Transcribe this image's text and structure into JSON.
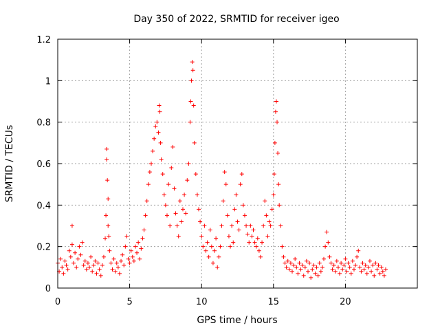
{
  "chart_data": {
    "type": "scatter",
    "title": "Day 350 of 2022, SRMTID for receiver igeo",
    "xlabel": "GPS time / hours",
    "ylabel": "SRMTID / TECUs",
    "xlim": [
      0,
      25
    ],
    "ylim": [
      0,
      1.2
    ],
    "x_ticks": [
      0,
      5,
      10,
      15,
      20
    ],
    "x_tick_labels": [
      "0",
      "5",
      "10",
      "15",
      "20"
    ],
    "y_ticks": [
      0,
      0.2,
      0.4,
      0.6,
      0.8,
      1,
      1.2
    ],
    "y_tick_labels": [
      "0",
      "0.2",
      "0.4",
      "0.6",
      "0.8",
      "1",
      "1.2"
    ],
    "grid": true,
    "marker": "+",
    "color": "#ff0000",
    "series": [
      {
        "name": "SRMTID",
        "points": [
          [
            0.0,
            0.12
          ],
          [
            0.1,
            0.08
          ],
          [
            0.2,
            0.14
          ],
          [
            0.3,
            0.1
          ],
          [
            0.4,
            0.07
          ],
          [
            0.5,
            0.13
          ],
          [
            0.6,
            0.11
          ],
          [
            0.7,
            0.09
          ],
          [
            0.8,
            0.18
          ],
          [
            0.9,
            0.15
          ],
          [
            1.0,
            0.3
          ],
          [
            1.0,
            0.21
          ],
          [
            1.1,
            0.12
          ],
          [
            1.2,
            0.17
          ],
          [
            1.3,
            0.1
          ],
          [
            1.4,
            0.14
          ],
          [
            1.5,
            0.2
          ],
          [
            1.6,
            0.16
          ],
          [
            1.7,
            0.22
          ],
          [
            1.8,
            0.11
          ],
          [
            1.9,
            0.13
          ],
          [
            2.0,
            0.09
          ],
          [
            2.1,
            0.12
          ],
          [
            2.2,
            0.1
          ],
          [
            2.3,
            0.15
          ],
          [
            2.4,
            0.08
          ],
          [
            2.5,
            0.11
          ],
          [
            2.6,
            0.13
          ],
          [
            2.7,
            0.07
          ],
          [
            2.8,
            0.12
          ],
          [
            2.9,
            0.09
          ],
          [
            3.0,
            0.06
          ],
          [
            3.1,
            0.11
          ],
          [
            3.2,
            0.15
          ],
          [
            3.3,
            0.24
          ],
          [
            3.35,
            0.35
          ],
          [
            3.4,
            0.67
          ],
          [
            3.4,
            0.62
          ],
          [
            3.45,
            0.52
          ],
          [
            3.5,
            0.43
          ],
          [
            3.5,
            0.3
          ],
          [
            3.55,
            0.25
          ],
          [
            3.6,
            0.18
          ],
          [
            3.7,
            0.12
          ],
          [
            3.8,
            0.09
          ],
          [
            3.9,
            0.14
          ],
          [
            4.0,
            0.08
          ],
          [
            4.1,
            0.12
          ],
          [
            4.2,
            0.1
          ],
          [
            4.3,
            0.07
          ],
          [
            4.4,
            0.13
          ],
          [
            4.5,
            0.16
          ],
          [
            4.6,
            0.11
          ],
          [
            4.7,
            0.2
          ],
          [
            4.8,
            0.25
          ],
          [
            4.9,
            0.14
          ],
          [
            5.0,
            0.12
          ],
          [
            5.1,
            0.18
          ],
          [
            5.2,
            0.15
          ],
          [
            5.3,
            0.13
          ],
          [
            5.4,
            0.2
          ],
          [
            5.5,
            0.17
          ],
          [
            5.6,
            0.22
          ],
          [
            5.7,
            0.14
          ],
          [
            5.8,
            0.19
          ],
          [
            5.9,
            0.24
          ],
          [
            6.0,
            0.28
          ],
          [
            6.1,
            0.35
          ],
          [
            6.2,
            0.42
          ],
          [
            6.3,
            0.5
          ],
          [
            6.4,
            0.56
          ],
          [
            6.5,
            0.6
          ],
          [
            6.6,
            0.66
          ],
          [
            6.7,
            0.72
          ],
          [
            6.8,
            0.78
          ],
          [
            6.9,
            0.8
          ],
          [
            7.0,
            0.75
          ],
          [
            7.05,
            0.88
          ],
          [
            7.1,
            0.85
          ],
          [
            7.15,
            0.7
          ],
          [
            7.2,
            0.62
          ],
          [
            7.3,
            0.55
          ],
          [
            7.4,
            0.45
          ],
          [
            7.5,
            0.4
          ],
          [
            7.6,
            0.35
          ],
          [
            7.7,
            0.5
          ],
          [
            7.8,
            0.3
          ],
          [
            7.9,
            0.58
          ],
          [
            8.0,
            0.68
          ],
          [
            8.1,
            0.48
          ],
          [
            8.2,
            0.36
          ],
          [
            8.3,
            0.3
          ],
          [
            8.4,
            0.25
          ],
          [
            8.5,
            0.42
          ],
          [
            8.6,
            0.32
          ],
          [
            8.7,
            0.38
          ],
          [
            8.8,
            0.45
          ],
          [
            8.9,
            0.36
          ],
          [
            9.0,
            0.52
          ],
          [
            9.1,
            0.6
          ],
          [
            9.2,
            0.8
          ],
          [
            9.25,
            0.9
          ],
          [
            9.3,
            1.0
          ],
          [
            9.35,
            1.09
          ],
          [
            9.4,
            1.05
          ],
          [
            9.45,
            0.88
          ],
          [
            9.5,
            0.7
          ],
          [
            9.6,
            0.55
          ],
          [
            9.7,
            0.45
          ],
          [
            9.8,
            0.38
          ],
          [
            9.9,
            0.32
          ],
          [
            10.0,
            0.25
          ],
          [
            10.1,
            0.2
          ],
          [
            10.2,
            0.3
          ],
          [
            10.3,
            0.18
          ],
          [
            10.4,
            0.22
          ],
          [
            10.5,
            0.15
          ],
          [
            10.6,
            0.28
          ],
          [
            10.7,
            0.2
          ],
          [
            10.8,
            0.12
          ],
          [
            10.9,
            0.18
          ],
          [
            11.0,
            0.24
          ],
          [
            11.1,
            0.1
          ],
          [
            11.2,
            0.15
          ],
          [
            11.3,
            0.2
          ],
          [
            11.4,
            0.3
          ],
          [
            11.5,
            0.42
          ],
          [
            11.6,
            0.56
          ],
          [
            11.7,
            0.5
          ],
          [
            11.8,
            0.35
          ],
          [
            11.9,
            0.25
          ],
          [
            12.0,
            0.2
          ],
          [
            12.1,
            0.3
          ],
          [
            12.2,
            0.22
          ],
          [
            12.3,
            0.38
          ],
          [
            12.4,
            0.45
          ],
          [
            12.5,
            0.32
          ],
          [
            12.6,
            0.28
          ],
          [
            12.7,
            0.5
          ],
          [
            12.8,
            0.55
          ],
          [
            12.9,
            0.4
          ],
          [
            13.0,
            0.35
          ],
          [
            13.1,
            0.3
          ],
          [
            13.2,
            0.26
          ],
          [
            13.3,
            0.22
          ],
          [
            13.4,
            0.3
          ],
          [
            13.5,
            0.25
          ],
          [
            13.6,
            0.28
          ],
          [
            13.7,
            0.22
          ],
          [
            13.8,
            0.2
          ],
          [
            13.9,
            0.24
          ],
          [
            14.0,
            0.18
          ],
          [
            14.1,
            0.15
          ],
          [
            14.2,
            0.22
          ],
          [
            14.3,
            0.3
          ],
          [
            14.4,
            0.42
          ],
          [
            14.5,
            0.35
          ],
          [
            14.6,
            0.25
          ],
          [
            14.7,
            0.32
          ],
          [
            14.8,
            0.3
          ],
          [
            14.9,
            0.38
          ],
          [
            15.0,
            0.45
          ],
          [
            15.05,
            0.55
          ],
          [
            15.1,
            0.7
          ],
          [
            15.15,
            0.85
          ],
          [
            15.2,
            0.9
          ],
          [
            15.25,
            0.8
          ],
          [
            15.3,
            0.65
          ],
          [
            15.35,
            0.5
          ],
          [
            15.4,
            0.4
          ],
          [
            15.5,
            0.3
          ],
          [
            15.6,
            0.2
          ],
          [
            15.7,
            0.15
          ],
          [
            15.8,
            0.12
          ],
          [
            15.9,
            0.1
          ],
          [
            16.0,
            0.13
          ],
          [
            16.1,
            0.09
          ],
          [
            16.2,
            0.12
          ],
          [
            16.3,
            0.08
          ],
          [
            16.4,
            0.11
          ],
          [
            16.5,
            0.14
          ],
          [
            16.6,
            0.1
          ],
          [
            16.7,
            0.07
          ],
          [
            16.8,
            0.12
          ],
          [
            16.9,
            0.09
          ],
          [
            17.0,
            0.11
          ],
          [
            17.1,
            0.06
          ],
          [
            17.2,
            0.1
          ],
          [
            17.3,
            0.13
          ],
          [
            17.4,
            0.08
          ],
          [
            17.5,
            0.12
          ],
          [
            17.6,
            0.05
          ],
          [
            17.7,
            0.09
          ],
          [
            17.8,
            0.11
          ],
          [
            17.9,
            0.07
          ],
          [
            18.0,
            0.1
          ],
          [
            18.1,
            0.06
          ],
          [
            18.2,
            0.12
          ],
          [
            18.3,
            0.08
          ],
          [
            18.4,
            0.1
          ],
          [
            18.5,
            0.14
          ],
          [
            18.6,
            0.2
          ],
          [
            18.7,
            0.27
          ],
          [
            18.8,
            0.22
          ],
          [
            18.9,
            0.15
          ],
          [
            19.0,
            0.12
          ],
          [
            19.1,
            0.09
          ],
          [
            19.2,
            0.11
          ],
          [
            19.3,
            0.08
          ],
          [
            19.4,
            0.13
          ],
          [
            19.5,
            0.1
          ],
          [
            19.6,
            0.07
          ],
          [
            19.7,
            0.12
          ],
          [
            19.8,
            0.09
          ],
          [
            19.9,
            0.11
          ],
          [
            20.0,
            0.14
          ],
          [
            20.1,
            0.08
          ],
          [
            20.2,
            0.12
          ],
          [
            20.3,
            0.1
          ],
          [
            20.4,
            0.07
          ],
          [
            20.5,
            0.13
          ],
          [
            20.6,
            0.09
          ],
          [
            20.7,
            0.11
          ],
          [
            20.8,
            0.15
          ],
          [
            20.9,
            0.18
          ],
          [
            21.0,
            0.1
          ],
          [
            21.1,
            0.08
          ],
          [
            21.2,
            0.12
          ],
          [
            21.3,
            0.09
          ],
          [
            21.4,
            0.11
          ],
          [
            21.5,
            0.07
          ],
          [
            21.6,
            0.1
          ],
          [
            21.7,
            0.13
          ],
          [
            21.8,
            0.08
          ],
          [
            21.9,
            0.11
          ],
          [
            22.0,
            0.06
          ],
          [
            22.1,
            0.12
          ],
          [
            22.2,
            0.09
          ],
          [
            22.3,
            0.11
          ],
          [
            22.4,
            0.07
          ],
          [
            22.5,
            0.1
          ],
          [
            22.6,
            0.08
          ],
          [
            22.7,
            0.06
          ],
          [
            22.8,
            0.09
          ]
        ]
      }
    ]
  }
}
